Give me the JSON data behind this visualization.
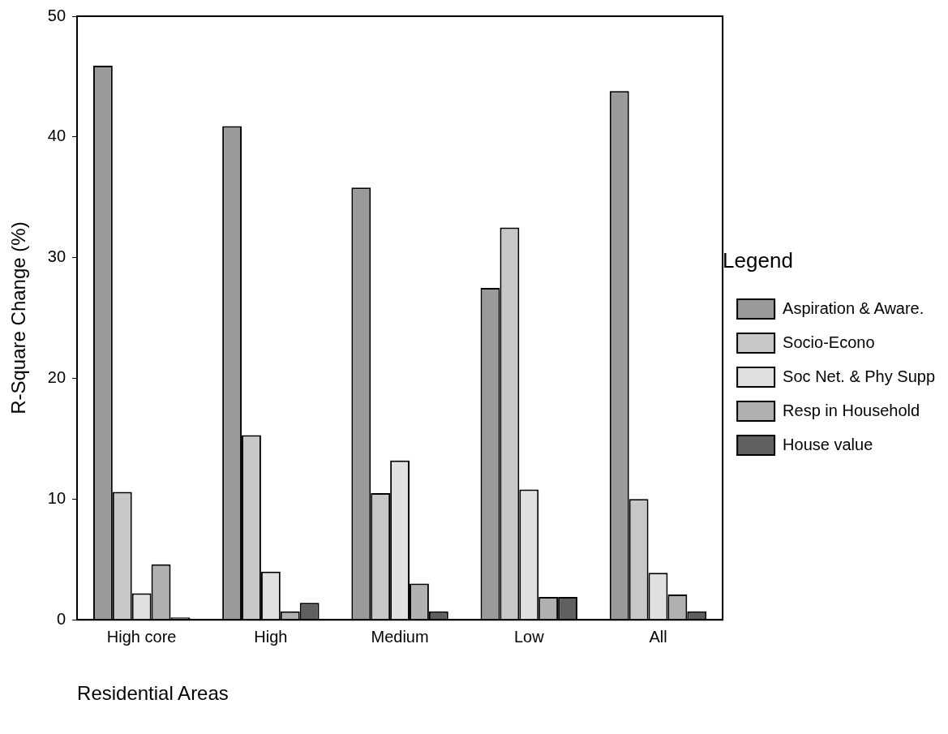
{
  "chart_data": {
    "type": "bar",
    "xlabel": "Residential Areas",
    "ylabel": "R-Square Change (%)",
    "legend_title": "Legend",
    "legend": "right",
    "grid": false,
    "categories": [
      "High core",
      "High",
      "Medium",
      "Low",
      "All"
    ],
    "ylim": [
      0,
      50
    ],
    "yticks": [
      0,
      10,
      20,
      30,
      40,
      50
    ],
    "series": [
      {
        "name": "Aspiration & Aware.",
        "color": "#9a9a9a",
        "values": [
          45.9,
          40.9,
          35.8,
          27.5,
          43.8
        ]
      },
      {
        "name": "Socio-Econo",
        "color": "#c8c8c8",
        "values": [
          10.6,
          15.3,
          10.5,
          32.5,
          10.0
        ]
      },
      {
        "name": "Soc Net. & Phy Supp",
        "color": "#e0e0e0",
        "values": [
          2.2,
          4.0,
          13.2,
          10.8,
          3.9
        ]
      },
      {
        "name": "Resp in Household",
        "color": "#b0b0b0",
        "values": [
          4.6,
          0.7,
          3.0,
          1.9,
          2.1
        ]
      },
      {
        "name": "House value",
        "color": "#606060",
        "values": [
          0.2,
          1.4,
          0.7,
          1.9,
          0.7
        ]
      }
    ]
  }
}
